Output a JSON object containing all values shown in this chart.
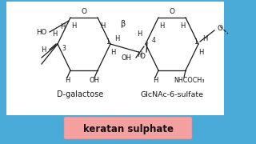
{
  "bg_color": "#4aaad8",
  "white_panel_color": "white",
  "label_dgalactose": "D-galactose",
  "label_glcnac": "GlcNAc-6-sulfate",
  "label_bottom": "keratan sulphate",
  "bottom_box_color": "#f5a0a0",
  "bottom_text_color": "#111111",
  "structure_color": "#1a1a1a",
  "link_color": "#555555"
}
